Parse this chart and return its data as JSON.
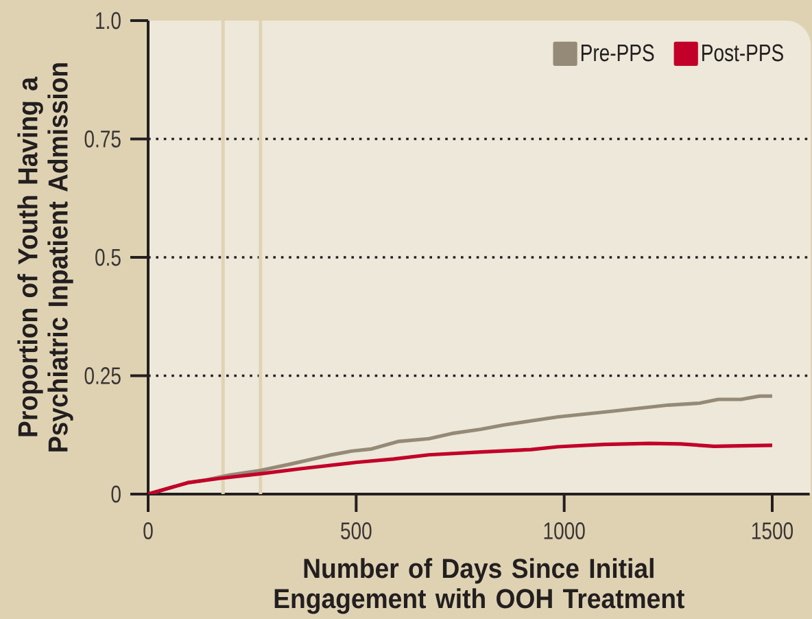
{
  "chart_data": {
    "type": "line",
    "xlabel": "Number of Days Since Initial Engagement with OOH Treatment",
    "ylabel": "Proportion of Youth Having a Psychiatric Inpatient Admission",
    "xlim": [
      0,
      1590
    ],
    "ylim": [
      0,
      1
    ],
    "xticks": [
      0,
      500,
      1000,
      1500
    ],
    "yticks": [
      0,
      0.25,
      0.5,
      0.75,
      {
        "value": 1,
        "label": "1.0"
      }
    ],
    "grid": "y",
    "legend": "top right",
    "ref_lines": [
      {
        "axis": "x",
        "value": 180,
        "color": "#e0d3b3"
      },
      {
        "axis": "x",
        "value": 270,
        "color": "#e0d3b3"
      }
    ],
    "series": [
      {
        "name": "Pre-PPS",
        "color": "#958a77",
        "x": [
          0,
          95,
          140,
          195,
          270,
          345,
          435,
          490,
          535,
          600,
          675,
          730,
          800,
          855,
          985,
          1115,
          1250,
          1325,
          1370,
          1425,
          1470,
          1500
        ],
        "values": [
          0,
          0.024,
          0.03,
          0.04,
          0.05,
          0.064,
          0.082,
          0.091,
          0.095,
          0.111,
          0.117,
          0.128,
          0.137,
          0.146,
          0.163,
          0.175,
          0.188,
          0.192,
          0.2,
          0.2,
          0.207,
          0.207
        ]
      },
      {
        "name": "Post-PPS",
        "color": "#c20029",
        "x": [
          0,
          95,
          170,
          270,
          370,
          500,
          590,
          675,
          800,
          920,
          985,
          1095,
          1205,
          1280,
          1360,
          1425,
          1500
        ],
        "values": [
          0,
          0.024,
          0.033,
          0.043,
          0.054,
          0.067,
          0.074,
          0.083,
          0.089,
          0.094,
          0.1,
          0.105,
          0.107,
          0.106,
          0.101,
          0.102,
          0.103
        ]
      }
    ]
  }
}
